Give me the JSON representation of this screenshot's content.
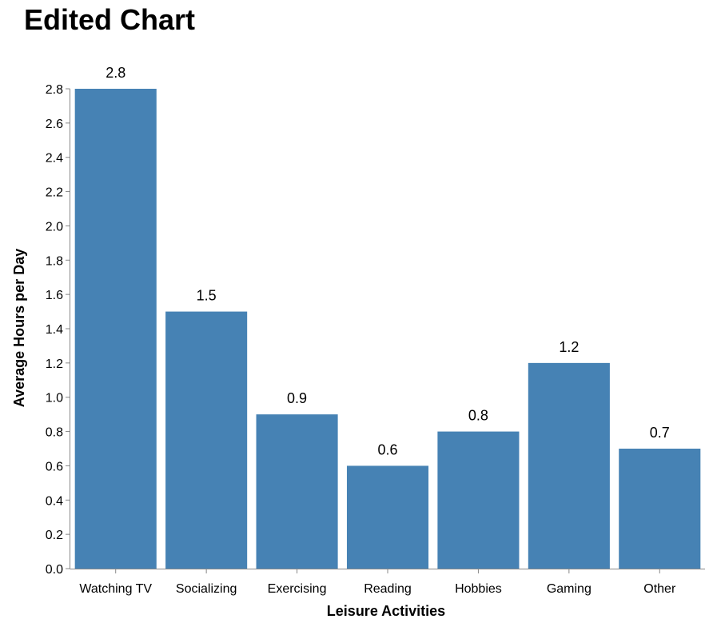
{
  "chart_data": {
    "type": "bar",
    "title": "Edited Chart",
    "xlabel": "Leisure Activities",
    "ylabel": "Average Hours per Day",
    "categories": [
      "Watching TV",
      "Socializing",
      "Exercising",
      "Reading",
      "Hobbies",
      "Gaming",
      "Other"
    ],
    "values": [
      2.8,
      1.5,
      0.9,
      0.6,
      0.8,
      1.2,
      0.7
    ],
    "ylim": [
      0,
      2.8
    ],
    "yticks": [
      "0.0",
      "0.2",
      "0.4",
      "0.6",
      "0.8",
      "1.0",
      "1.2",
      "1.4",
      "1.6",
      "1.8",
      "2.0",
      "2.2",
      "2.4",
      "2.6",
      "2.8"
    ],
    "bar_color": "#4682b4",
    "grid": false,
    "legend": "none"
  }
}
